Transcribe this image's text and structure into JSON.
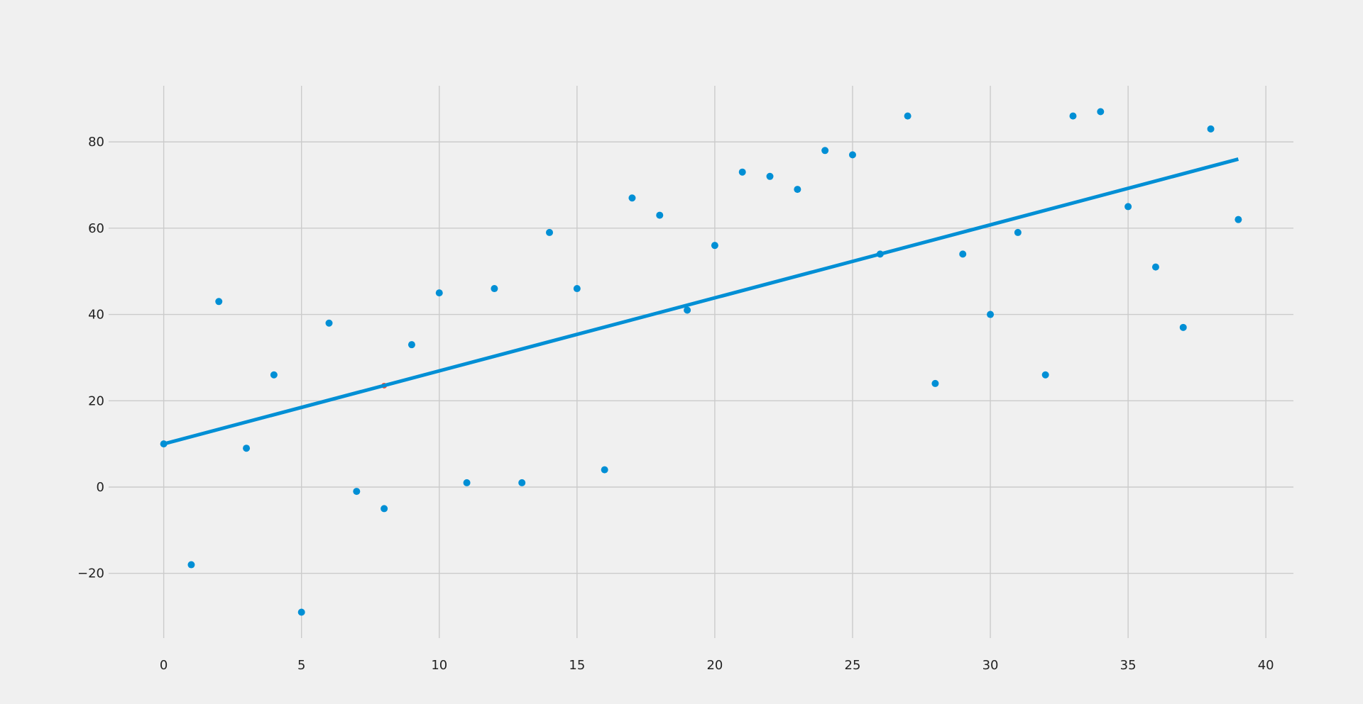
{
  "chart_data": {
    "type": "scatter",
    "title": "",
    "xlabel": "",
    "ylabel": "",
    "xlim": [
      -2,
      41
    ],
    "ylim": [
      -35,
      93
    ],
    "grid": true,
    "x_ticks": [
      0,
      5,
      10,
      15,
      20,
      25,
      30,
      35,
      40
    ],
    "y_ticks": [
      -20,
      0,
      20,
      40,
      60,
      80
    ],
    "x_tick_labels": [
      "0",
      "5",
      "10",
      "15",
      "20",
      "25",
      "30",
      "35",
      "40"
    ],
    "y_tick_labels": [
      "−20",
      "0",
      "20",
      "40",
      "60",
      "80"
    ],
    "series": [
      {
        "kind": "scatter",
        "color": "#008fd5",
        "x": [
          0,
          1,
          2,
          3,
          4,
          5,
          6,
          7,
          8,
          9,
          10,
          11,
          12,
          13,
          14,
          15,
          16,
          17,
          18,
          19,
          20,
          21,
          22,
          23,
          24,
          25,
          26,
          27,
          28,
          29,
          30,
          31,
          32,
          33,
          34,
          35,
          36,
          37,
          38,
          39
        ],
        "y": [
          10,
          -18,
          43,
          9,
          26,
          -29,
          38,
          -1,
          -5,
          33,
          45,
          1,
          46,
          1,
          59,
          46,
          4,
          67,
          63,
          41,
          56,
          73,
          72,
          69,
          78,
          77,
          54,
          86,
          24,
          54,
          40,
          59,
          26,
          86,
          87,
          65,
          51,
          37,
          83,
          62
        ]
      },
      {
        "kind": "point",
        "color": "#fc4f30",
        "x": [
          8
        ],
        "y": [
          23.5
        ]
      },
      {
        "kind": "line",
        "color": "#008fd5",
        "x": [
          0,
          39
        ],
        "y": [
          10,
          76
        ]
      }
    ]
  }
}
